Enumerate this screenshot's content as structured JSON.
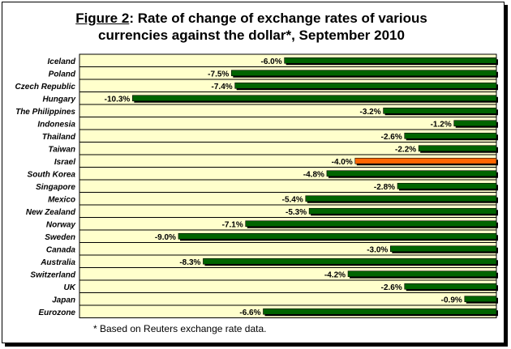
{
  "chart_data": {
    "type": "bar",
    "orientation": "horizontal",
    "title_prefix": "Figure 2",
    "title_line1": ": Rate of change of exchange rates of various",
    "title_line2": "currencies against the dollar*, September 2010",
    "footnote": "* Based on Reuters exchange rate data.",
    "categories": [
      "Iceland",
      "Poland",
      "Czech Republic",
      "Hungary",
      "The Philippines",
      "Indonesia",
      "Thailand",
      "Taiwan",
      "Israel",
      "South Korea",
      "Singapore",
      "Mexico",
      "New Zealand",
      "Norway",
      "Sweden",
      "Canada",
      "Australia",
      "Switzerland",
      "UK",
      "Japan",
      "Eurozone"
    ],
    "values": [
      -6.0,
      -7.5,
      -7.4,
      -10.3,
      -3.2,
      -1.2,
      -2.6,
      -2.2,
      -4.0,
      -4.8,
      -2.8,
      -5.4,
      -5.3,
      -7.1,
      -9.0,
      -3.0,
      -8.3,
      -4.2,
      -2.6,
      -0.9,
      -6.6
    ],
    "value_labels": [
      "-6.0%",
      "-7.5%",
      "-7.4%",
      "-10.3%",
      "-3.2%",
      "-1.2%",
      "-2.6%",
      "-2.2%",
      "-4.0%",
      "-4.8%",
      "-2.8%",
      "-5.4%",
      "-5.3%",
      "-7.1%",
      "-9.0%",
      "-3.0%",
      "-8.3%",
      "-4.2%",
      "-2.6%",
      "-0.9%",
      "-6.6%"
    ],
    "highlight": "Israel",
    "xlim": [
      -11.8,
      0
    ],
    "grid": "horizontal",
    "colors": {
      "bar": "#006400",
      "highlight": "#ff6600",
      "plot_bg": "#ffffcc"
    }
  }
}
